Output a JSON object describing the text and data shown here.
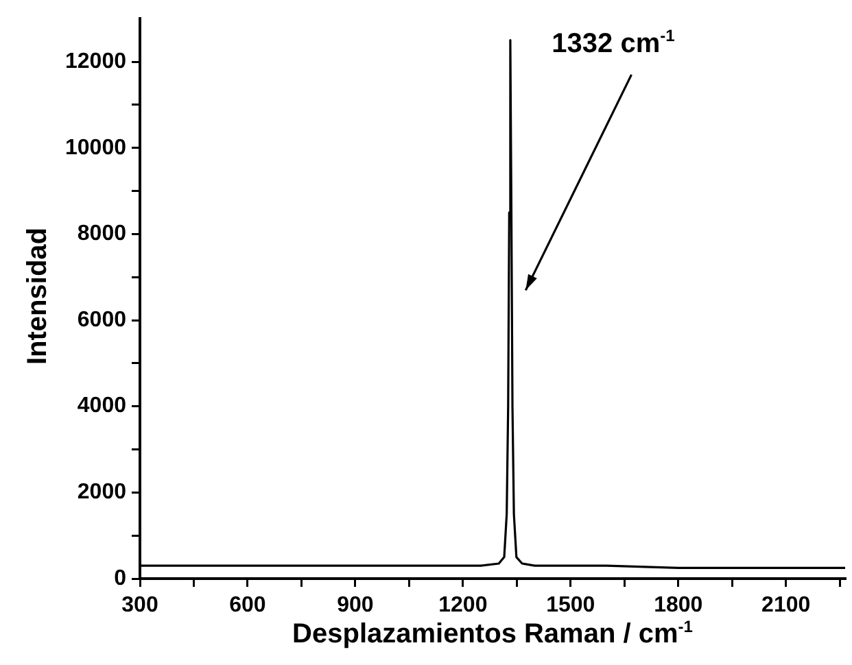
{
  "chart_data": {
    "type": "line",
    "xlabel": "Desplazamientos Raman / cm$^{-1}$",
    "ylabel": "Intensidad",
    "x": [
      300,
      500,
      700,
      900,
      1100,
      1250,
      1300,
      1315,
      1322,
      1326,
      1329,
      1332,
      1335,
      1338,
      1342,
      1349,
      1365,
      1400,
      1600,
      1800,
      2000,
      2200,
      2265
    ],
    "series": [
      {
        "color": "#000000",
        "values": [
          300,
          300,
          300,
          300,
          300,
          300,
          350,
          500,
          1500,
          4000,
          8500,
          12500,
          8500,
          4000,
          1500,
          500,
          350,
          300,
          300,
          250,
          250,
          250,
          250
        ]
      }
    ],
    "xlim": [
      300,
      2265
    ],
    "ylim": [
      0,
      13000
    ],
    "xticks": [
      300,
      {
        "value": 450,
        "label": null
      },
      600,
      {
        "value": 750,
        "label": null
      },
      900,
      {
        "value": 1050,
        "label": null
      },
      1200,
      {
        "value": 1350,
        "label": null
      },
      1500,
      {
        "value": 1650,
        "label": null
      },
      1800,
      {
        "value": 1950,
        "label": null
      },
      2100,
      {
        "value": 2250,
        "label": null
      }
    ],
    "yticks": [
      0,
      {
        "value": 1000,
        "label": null
      },
      2000,
      {
        "value": 3000,
        "label": null
      },
      4000,
      {
        "value": 5000,
        "label": null
      },
      6000,
      {
        "value": 7000,
        "label": null
      },
      8000,
      {
        "value": 9000,
        "label": null
      },
      10000,
      {
        "value": 11000,
        "label": null
      },
      12000
    ],
    "annotations": [
      "1332 cm$^{-1}$"
    ],
    "grid": false,
    "legend": false,
    "marker": "none",
    "line_style": "solid"
  }
}
